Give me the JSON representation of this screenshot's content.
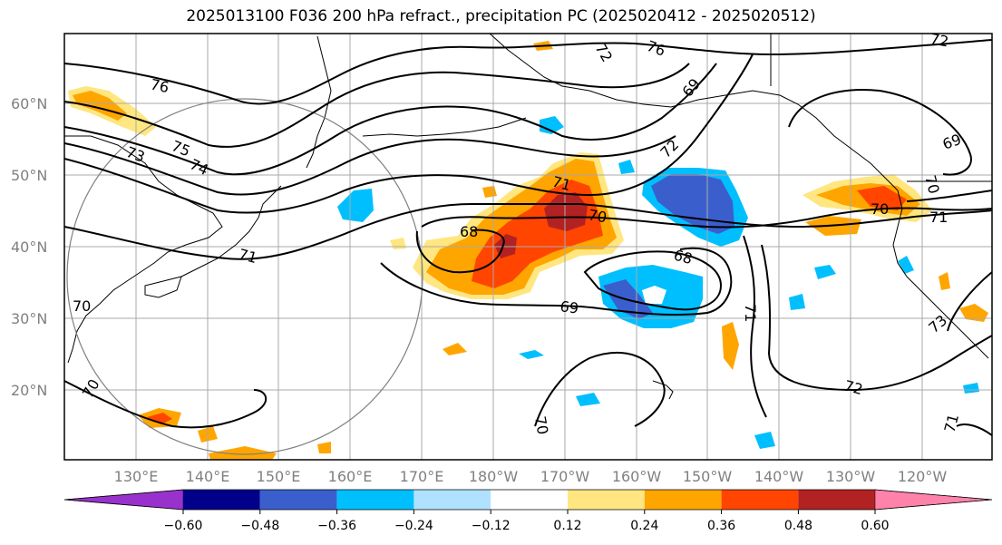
{
  "title": "2025013100 F036 200 hPa refract., precipitation PC (2025020412 - 2025020512)",
  "lat_labels": [
    "60°N",
    "50°N",
    "40°N",
    "30°N",
    "20°N"
  ],
  "lon_labels": [
    "130°E",
    "140°E",
    "150°E",
    "160°E",
    "170°E",
    "180°W",
    "170°W",
    "160°W",
    "150°W",
    "140°W",
    "130°W",
    "120°W"
  ],
  "colorbar": {
    "tick_labels": [
      "−0.60",
      "−0.48",
      "−0.36",
      "−0.24",
      "−0.12",
      "0.12",
      "0.24",
      "0.36",
      "0.48",
      "0.60"
    ],
    "colors": [
      "#9932cc",
      "#00008b",
      "#3a5fcd",
      "#00bfff",
      "#b0e2ff",
      "#ffffff",
      "#ffe680",
      "#ffa500",
      "#ff4500",
      "#b22222",
      "#ff82ab"
    ]
  },
  "contour_labels": [
    "76",
    "75",
    "74",
    "73",
    "72",
    "71",
    "70",
    "69",
    "68",
    "71",
    "70",
    "69",
    "68",
    "72",
    "71",
    "70",
    "69",
    "72",
    "73",
    "70",
    "70",
    "71",
    "70",
    "71",
    "76",
    "72"
  ]
}
